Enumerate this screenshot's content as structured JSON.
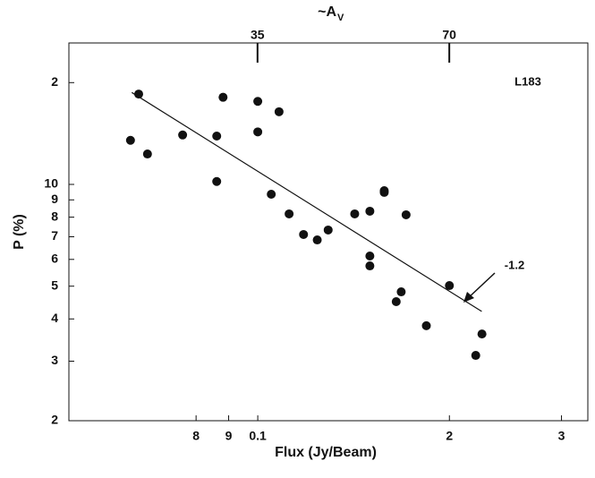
{
  "chart_data": {
    "type": "scatter",
    "x_label": "Flux (Jy/Beam)",
    "y_label": "P (%)",
    "top_axis_label": "~A",
    "top_axis_label_sub": "V",
    "log_x": true,
    "log_y": true,
    "color": "#111111",
    "xlim": [
      0.0505,
      0.33
    ],
    "xticks": [
      {
        "value": 0.08,
        "label": "8"
      },
      {
        "value": 0.09,
        "label": "9"
      },
      0.1,
      {
        "value": 0.2,
        "label": "2"
      },
      {
        "value": 0.3,
        "label": "3"
      }
    ],
    "ylim": [
      2,
      26.2
    ],
    "yticks": [
      2,
      3,
      4,
      5,
      6,
      7,
      8,
      9,
      10,
      {
        "value": 20,
        "label": "2"
      }
    ],
    "x2lim": [
      17.7,
      115.5
    ],
    "x2ticks": [
      35,
      70
    ],
    "x": [
      0.065,
      0.0631,
      0.0671,
      0.0762,
      0.0862,
      0.0882,
      0.0862,
      0.1,
      0.1,
      0.108,
      0.105,
      0.112,
      0.118,
      0.124,
      0.129,
      0.142,
      0.15,
      0.158,
      0.158,
      0.171,
      0.15,
      0.15,
      0.168,
      0.165,
      0.184,
      0.2,
      0.225,
      0.22
    ],
    "values": [
      18.5,
      13.5,
      12.3,
      14.0,
      13.9,
      18.1,
      10.2,
      17.6,
      14.3,
      16.4,
      9.35,
      8.18,
      7.11,
      6.85,
      7.33,
      8.18,
      8.33,
      9.47,
      9.58,
      8.13,
      6.14,
      5.74,
      4.81,
      4.5,
      3.82,
      5.02,
      3.61,
      3.12
    ],
    "fit_line": {
      "x": [
        0.0634,
        0.2248
      ],
      "y": [
        18.7,
        4.21
      ]
    },
    "annotation": "-1.2",
    "label": "L183"
  }
}
